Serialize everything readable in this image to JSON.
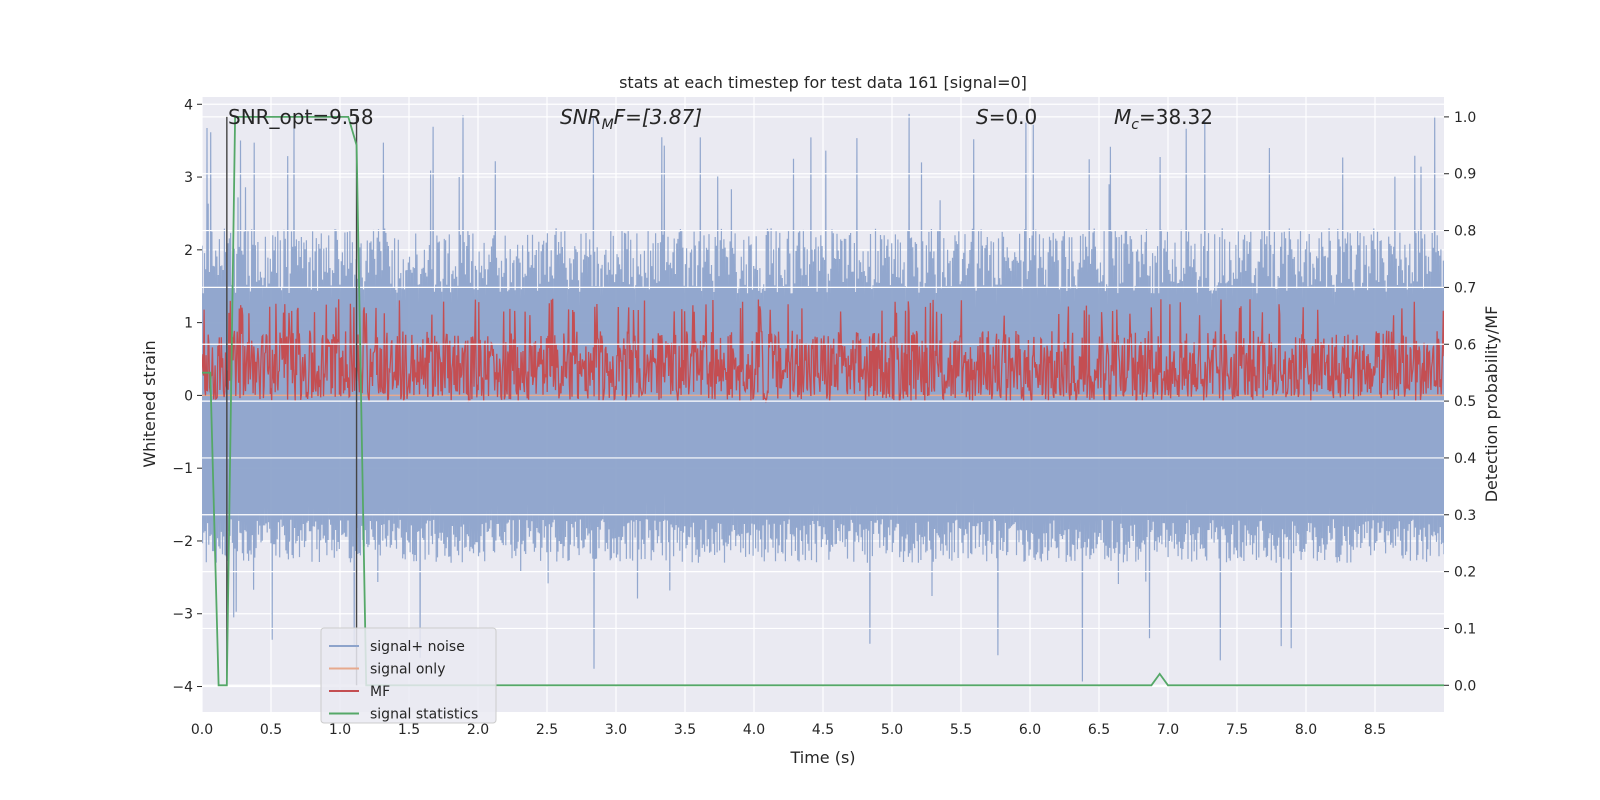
{
  "chart_data": {
    "type": "line",
    "title": "stats at each timestep for test data 161 [signal=0]",
    "xlabel": "Time (s)",
    "ylabel": "Whitened strain",
    "y2label": "Detection probability/MF",
    "xlim": [
      0.0,
      9.0
    ],
    "ylim": [
      -4.35,
      4.1
    ],
    "y2lim": [
      -0.047,
      1.035
    ],
    "x_ticks": [
      "0.0",
      "0.5",
      "1.0",
      "1.5",
      "2.0",
      "2.5",
      "3.0",
      "3.5",
      "4.0",
      "4.5",
      "5.0",
      "5.5",
      "6.0",
      "6.5",
      "7.0",
      "7.5",
      "8.0",
      "8.5"
    ],
    "y_ticks": [
      "4",
      "3",
      "2",
      "1",
      "0",
      "−1",
      "−2",
      "−3",
      "−4"
    ],
    "y2_ticks": [
      "1.0",
      "0.9",
      "0.8",
      "0.7",
      "0.6",
      "0.5",
      "0.4",
      "0.3",
      "0.2",
      "0.1",
      "0.0"
    ],
    "grid": true,
    "legend_position": "lower-left",
    "annotations": {
      "snr_opt": "SNR_opt=9.58",
      "snr_mf_sym": "SNR",
      "snr_mf_sub": "M",
      "snr_mf_rest": "F=[3.87]",
      "s_sym": "S",
      "s_val": "=0.0",
      "mc_sym": "M",
      "mc_sub": "c",
      "mc_val": "=38.32"
    },
    "vlines_x": [
      0.18,
      1.12
    ],
    "series": [
      {
        "name": "signal+ noise",
        "color": "#8da3cb",
        "axis": "left",
        "envelope_upper": 1.4,
        "envelope_lower": -1.7,
        "spike_max": 3.9,
        "spike_min": -4.0,
        "x_range": [
          0.0,
          9.0
        ],
        "samples": 2000
      },
      {
        "name": "signal only",
        "color": "#e7a98d",
        "axis": "left",
        "x": [
          0.0,
          9.0
        ],
        "y": [
          0.0,
          0.0
        ]
      },
      {
        "name": "MF",
        "color": "#c44e52",
        "axis": "right",
        "baseline": 0.53,
        "band_low": 0.5,
        "band_high": 0.65,
        "band_peak": 0.68,
        "x_range": [
          0.0,
          9.0
        ],
        "samples": 1800
      },
      {
        "name": "signal statistics",
        "color": "#55a868",
        "axis": "right",
        "x": [
          0.0,
          0.06,
          0.12,
          0.18,
          0.24,
          1.0,
          1.06,
          1.12,
          1.19,
          6.88,
          6.94,
          7.0,
          9.0
        ],
        "y": [
          0.55,
          0.55,
          0.0,
          0.0,
          1.0,
          1.0,
          1.0,
          0.95,
          0.0,
          0.0,
          0.02,
          0.0,
          0.0
        ]
      }
    ]
  }
}
